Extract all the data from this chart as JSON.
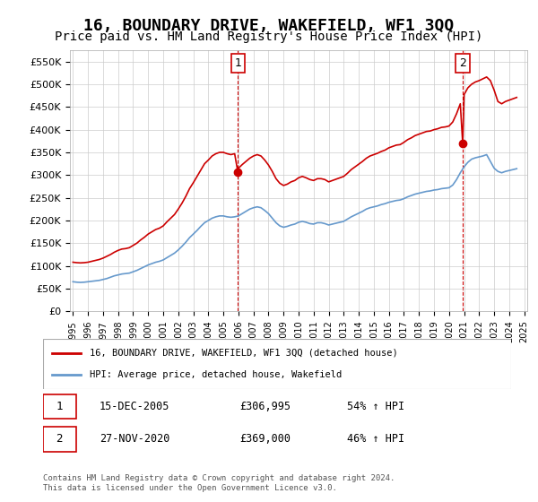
{
  "title": "16, BOUNDARY DRIVE, WAKEFIELD, WF1 3QQ",
  "subtitle": "Price paid vs. HM Land Registry's House Price Index (HPI)",
  "title_fontsize": 13,
  "subtitle_fontsize": 10,
  "x_start_year": 1995,
  "x_end_year": 2025,
  "y_min": 0,
  "y_max": 575000,
  "y_ticks": [
    0,
    50000,
    100000,
    150000,
    200000,
    250000,
    300000,
    350000,
    400000,
    450000,
    500000,
    550000
  ],
  "y_tick_labels": [
    "£0",
    "£50K",
    "£100K",
    "£150K",
    "£200K",
    "£250K",
    "£300K",
    "£350K",
    "£400K",
    "£450K",
    "£500K",
    "£550K"
  ],
  "red_line_color": "#cc0000",
  "blue_line_color": "#6699cc",
  "grid_color": "#cccccc",
  "background_color": "#ffffff",
  "legend_label_red": "16, BOUNDARY DRIVE, WAKEFIELD, WF1 3QQ (detached house)",
  "legend_label_blue": "HPI: Average price, detached house, Wakefield",
  "sale1_label": "1",
  "sale1_date": "15-DEC-2005",
  "sale1_price": "£306,995",
  "sale1_hpi": "54% ↑ HPI",
  "sale1_year": 2005.96,
  "sale1_value": 306995,
  "sale2_label": "2",
  "sale2_date": "27-NOV-2020",
  "sale2_price": "£369,000",
  "sale2_hpi": "46% ↑ HPI",
  "sale2_year": 2020.91,
  "sale2_value": 369000,
  "footnote": "Contains HM Land Registry data © Crown copyright and database right 2024.\nThis data is licensed under the Open Government Licence v3.0.",
  "hpi_years": [
    1995.0,
    1995.25,
    1995.5,
    1995.75,
    1996.0,
    1996.25,
    1996.5,
    1996.75,
    1997.0,
    1997.25,
    1997.5,
    1997.75,
    1998.0,
    1998.25,
    1998.5,
    1998.75,
    1999.0,
    1999.25,
    1999.5,
    1999.75,
    2000.0,
    2000.25,
    2000.5,
    2000.75,
    2001.0,
    2001.25,
    2001.5,
    2001.75,
    2002.0,
    2002.25,
    2002.5,
    2002.75,
    2003.0,
    2003.25,
    2003.5,
    2003.75,
    2004.0,
    2004.25,
    2004.5,
    2004.75,
    2005.0,
    2005.25,
    2005.5,
    2005.75,
    2006.0,
    2006.25,
    2006.5,
    2006.75,
    2007.0,
    2007.25,
    2007.5,
    2007.75,
    2008.0,
    2008.25,
    2008.5,
    2008.75,
    2009.0,
    2009.25,
    2009.5,
    2009.75,
    2010.0,
    2010.25,
    2010.5,
    2010.75,
    2011.0,
    2011.25,
    2011.5,
    2011.75,
    2012.0,
    2012.25,
    2012.5,
    2012.75,
    2013.0,
    2013.25,
    2013.5,
    2013.75,
    2014.0,
    2014.25,
    2014.5,
    2014.75,
    2015.0,
    2015.25,
    2015.5,
    2015.75,
    2016.0,
    2016.25,
    2016.5,
    2016.75,
    2017.0,
    2017.25,
    2017.5,
    2017.75,
    2018.0,
    2018.25,
    2018.5,
    2018.75,
    2019.0,
    2019.25,
    2019.5,
    2019.75,
    2020.0,
    2020.25,
    2020.5,
    2020.75,
    2021.0,
    2021.25,
    2021.5,
    2021.75,
    2022.0,
    2022.25,
    2022.5,
    2022.75,
    2023.0,
    2023.25,
    2023.5,
    2023.75,
    2024.0,
    2024.25,
    2024.5
  ],
  "hpi_values": [
    65000,
    64000,
    63500,
    64000,
    65000,
    66000,
    67000,
    68000,
    70000,
    72000,
    75000,
    78000,
    80000,
    82000,
    83000,
    84000,
    87000,
    90000,
    94000,
    98000,
    102000,
    105000,
    108000,
    110000,
    113000,
    118000,
    123000,
    128000,
    135000,
    143000,
    152000,
    162000,
    170000,
    178000,
    187000,
    195000,
    200000,
    205000,
    208000,
    210000,
    210000,
    208000,
    207000,
    208000,
    210000,
    215000,
    220000,
    225000,
    228000,
    230000,
    228000,
    222000,
    215000,
    205000,
    195000,
    188000,
    185000,
    187000,
    190000,
    192000,
    196000,
    198000,
    196000,
    193000,
    192000,
    195000,
    195000,
    193000,
    190000,
    192000,
    194000,
    196000,
    198000,
    203000,
    208000,
    212000,
    216000,
    220000,
    225000,
    228000,
    230000,
    232000,
    235000,
    237000,
    240000,
    242000,
    244000,
    245000,
    248000,
    252000,
    255000,
    258000,
    260000,
    262000,
    264000,
    265000,
    267000,
    268000,
    270000,
    271000,
    272000,
    278000,
    290000,
    305000,
    318000,
    328000,
    335000,
    338000,
    340000,
    342000,
    345000,
    330000,
    315000,
    308000,
    305000,
    308000,
    310000,
    312000,
    314000
  ],
  "red_years": [
    1995.0,
    1995.25,
    1995.5,
    1995.75,
    1996.0,
    1996.25,
    1996.5,
    1996.75,
    1997.0,
    1997.25,
    1997.5,
    1997.75,
    1998.0,
    1998.25,
    1998.5,
    1998.75,
    1999.0,
    1999.25,
    1999.5,
    1999.75,
    2000.0,
    2000.25,
    2000.5,
    2000.75,
    2001.0,
    2001.25,
    2001.5,
    2001.75,
    2002.0,
    2002.25,
    2002.5,
    2002.75,
    2003.0,
    2003.25,
    2003.5,
    2003.75,
    2004.0,
    2004.25,
    2004.5,
    2004.75,
    2005.0,
    2005.25,
    2005.5,
    2005.75,
    2005.96,
    2005.96,
    2006.0,
    2006.25,
    2006.5,
    2006.75,
    2007.0,
    2007.25,
    2007.5,
    2007.75,
    2008.0,
    2008.25,
    2008.5,
    2008.75,
    2009.0,
    2009.25,
    2009.5,
    2009.75,
    2010.0,
    2010.25,
    2010.5,
    2010.75,
    2011.0,
    2011.25,
    2011.5,
    2011.75,
    2012.0,
    2012.25,
    2012.5,
    2012.75,
    2013.0,
    2013.25,
    2013.5,
    2013.75,
    2014.0,
    2014.25,
    2014.5,
    2014.75,
    2015.0,
    2015.25,
    2015.5,
    2015.75,
    2016.0,
    2016.25,
    2016.5,
    2016.75,
    2017.0,
    2017.25,
    2017.5,
    2017.75,
    2018.0,
    2018.25,
    2018.5,
    2018.75,
    2019.0,
    2019.25,
    2019.5,
    2019.75,
    2020.0,
    2020.25,
    2020.5,
    2020.75,
    2020.91,
    2020.91,
    2021.0,
    2021.25,
    2021.5,
    2021.75,
    2022.0,
    2022.25,
    2022.5,
    2022.75,
    2023.0,
    2023.25,
    2023.5,
    2023.75,
    2024.0,
    2024.25,
    2024.5
  ],
  "red_values": [
    108000,
    107000,
    106500,
    107000,
    108000,
    110000,
    112000,
    114000,
    117000,
    121000,
    125000,
    130000,
    134000,
    137000,
    138000,
    140000,
    145000,
    150000,
    157000,
    163000,
    170000,
    175000,
    180000,
    183000,
    188000,
    197000,
    205000,
    213000,
    225000,
    238000,
    253000,
    270000,
    283000,
    297000,
    311000,
    325000,
    333000,
    342000,
    347000,
    350000,
    350000,
    347000,
    345000,
    347000,
    306995,
    306995,
    315000,
    323000,
    330000,
    337000,
    342000,
    345000,
    342000,
    333000,
    322000,
    308000,
    292000,
    282000,
    277000,
    280000,
    285000,
    288000,
    294000,
    297000,
    294000,
    290000,
    288000,
    292000,
    292000,
    290000,
    285000,
    288000,
    291000,
    294000,
    297000,
    304000,
    312000,
    318000,
    324000,
    330000,
    337000,
    342000,
    345000,
    348000,
    352000,
    355000,
    360000,
    363000,
    366000,
    367000,
    372000,
    378000,
    382000,
    387000,
    390000,
    393000,
    396000,
    397000,
    400000,
    402000,
    405000,
    406000,
    408000,
    417000,
    435000,
    457000,
    369000,
    369000,
    477000,
    492000,
    500000,
    505000,
    508000,
    512000,
    516000,
    508000,
    487000,
    462000,
    457000,
    462000,
    465000,
    468000,
    471000
  ]
}
